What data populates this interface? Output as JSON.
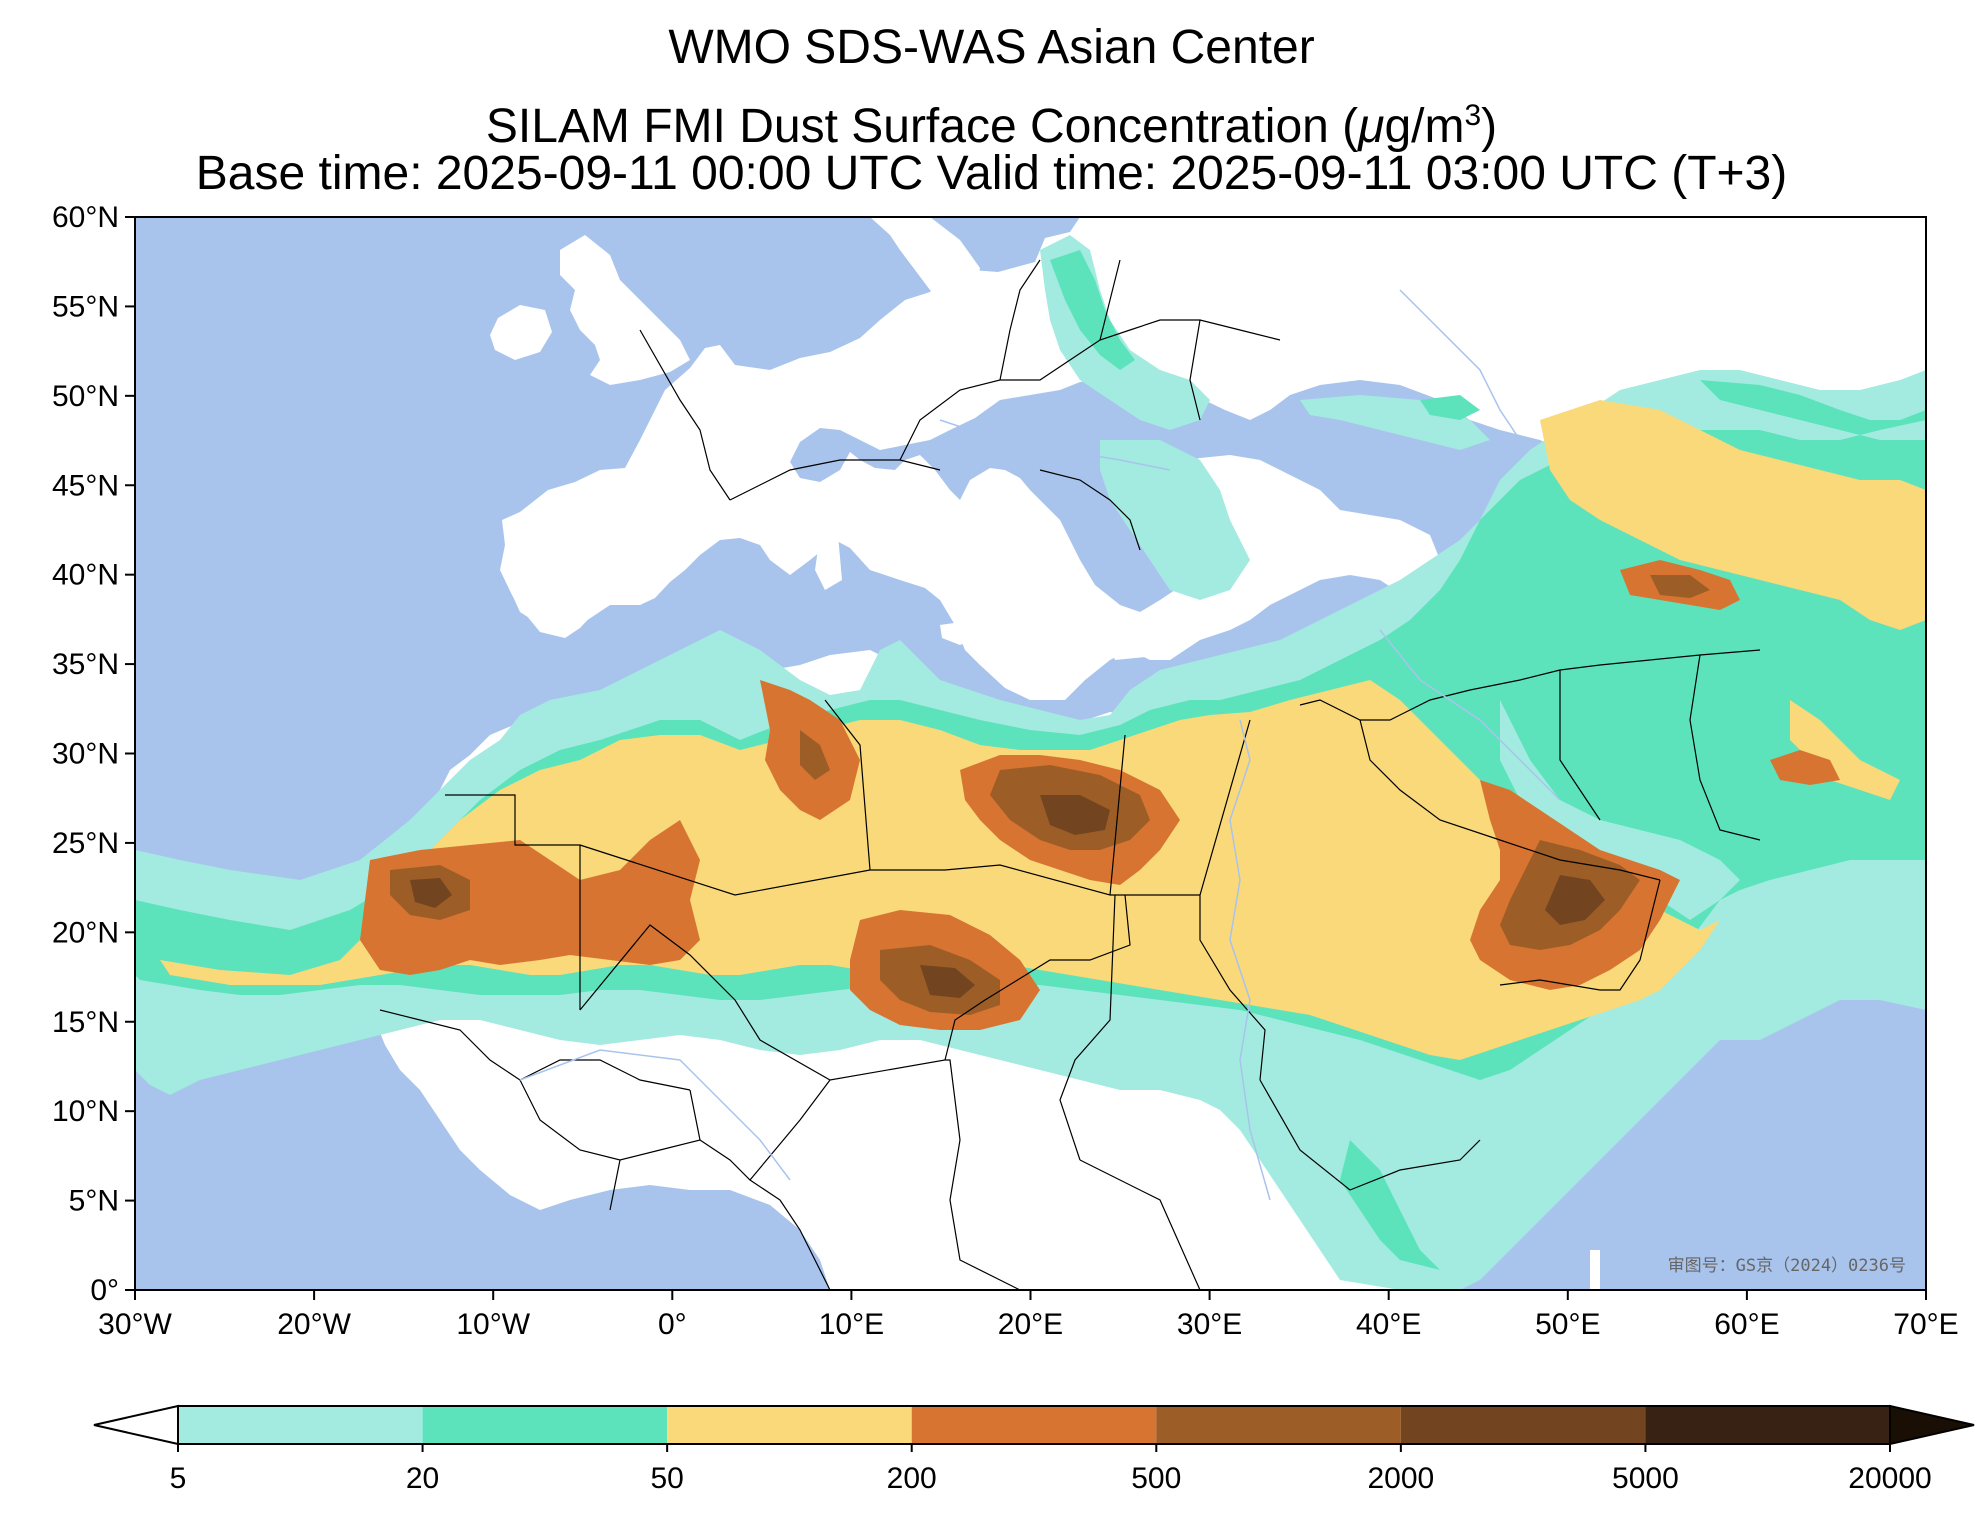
{
  "title": {
    "line1": "WMO SDS-WAS Asian Center",
    "line2_prefix": "SILAM FMI Dust Surface Concentration (",
    "line2_mu": "μ",
    "line2_unit": "g/m",
    "line2_sup": "3",
    "line2_suffix": ")",
    "line3": "Base time: 2025-09-11 00:00 UTC Valid time: 2025-09-11 03:00 UTC (T+3)"
  },
  "axes": {
    "lon_range": [
      -30,
      70
    ],
    "lat_range": [
      0,
      60
    ],
    "lon_ticks": [
      {
        "value": -30,
        "label": "30°W"
      },
      {
        "value": -20,
        "label": "20°W"
      },
      {
        "value": -10,
        "label": "10°W"
      },
      {
        "value": 0,
        "label": "0°"
      },
      {
        "value": 10,
        "label": "10°E"
      },
      {
        "value": 20,
        "label": "20°E"
      },
      {
        "value": 30,
        "label": "30°E"
      },
      {
        "value": 40,
        "label": "40°E"
      },
      {
        "value": 50,
        "label": "50°E"
      },
      {
        "value": 60,
        "label": "60°E"
      },
      {
        "value": 70,
        "label": "70°E"
      }
    ],
    "lat_ticks": [
      {
        "value": 60,
        "label": "60°N"
      },
      {
        "value": 55,
        "label": "55°N"
      },
      {
        "value": 50,
        "label": "50°N"
      },
      {
        "value": 45,
        "label": "45°N"
      },
      {
        "value": 40,
        "label": "40°N"
      },
      {
        "value": 35,
        "label": "35°N"
      },
      {
        "value": 30,
        "label": "30°N"
      },
      {
        "value": 25,
        "label": "25°N"
      },
      {
        "value": 20,
        "label": "20°N"
      },
      {
        "value": 15,
        "label": "15°N"
      },
      {
        "value": 10,
        "label": "10°N"
      },
      {
        "value": 5,
        "label": "5°N"
      },
      {
        "value": 0,
        "label": "0°"
      }
    ]
  },
  "colors": {
    "ocean": "#a9c4ec",
    "land": "#ffffff",
    "border": "#000000",
    "river": "#a9c4ec"
  },
  "colorbar": {
    "levels": [
      "5",
      "20",
      "50",
      "200",
      "500",
      "2000",
      "5000",
      "20000"
    ],
    "under_color": "#ffffff",
    "over_color": "#1a0f05",
    "colors": [
      "#a3ebe0",
      "#5ce3bb",
      "#f9d97a",
      "#d87432",
      "#9c5e26",
      "#724520",
      "#382213"
    ]
  },
  "approval_text": "审图号：GS京（2024）0236号"
}
